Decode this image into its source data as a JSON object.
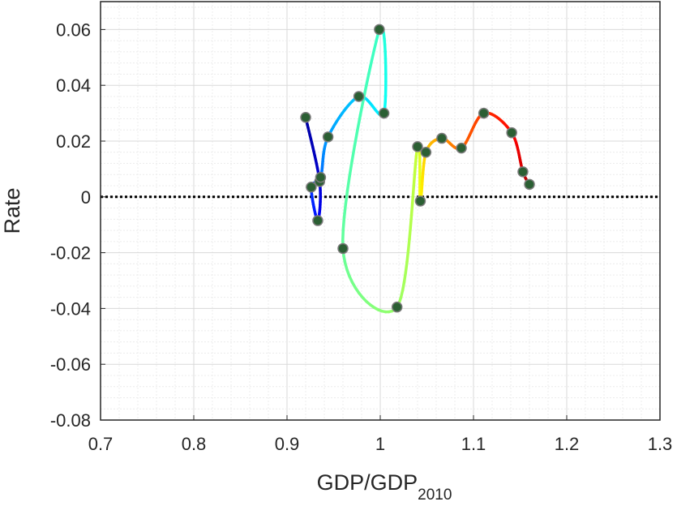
{
  "chart_data": {
    "type": "scatter",
    "title": "",
    "xlabel": "GDP/GDP",
    "xlabel_subscript": "2010",
    "ylabel": "Rate",
    "xlim": [
      0.7,
      1.3
    ],
    "ylim": [
      -0.08,
      0.07
    ],
    "xticks": [
      "0.7",
      "0.8",
      "0.9",
      "1",
      "1.1",
      "1.2",
      "1.3"
    ],
    "yticks": [
      "-0.08",
      "-0.06",
      "-0.04",
      "-0.02",
      "0",
      "0.02",
      "0.04",
      "0.06"
    ],
    "grid": "minor",
    "reference_line": {
      "y": 0,
      "style": "dotted",
      "color": "#000000"
    },
    "series": [
      {
        "points": [
          {
            "x": 0.92,
            "y": 0.0285
          },
          {
            "x": 0.935,
            "y": 0.0055
          },
          {
            "x": 0.933,
            "y": -0.0085
          },
          {
            "x": 0.926,
            "y": 0.0035
          },
          {
            "x": 0.936,
            "y": 0.007
          },
          {
            "x": 0.944,
            "y": 0.0215
          },
          {
            "x": 0.977,
            "y": 0.036
          },
          {
            "x": 1.004,
            "y": 0.03
          },
          {
            "x": 0.999,
            "y": 0.06
          },
          {
            "x": 0.96,
            "y": -0.0185
          },
          {
            "x": 1.018,
            "y": -0.0395
          },
          {
            "x": 1.04,
            "y": 0.018
          },
          {
            "x": 1.043,
            "y": -0.0015
          },
          {
            "x": 1.049,
            "y": 0.016
          },
          {
            "x": 1.066,
            "y": 0.021
          },
          {
            "x": 1.087,
            "y": 0.0175
          },
          {
            "x": 1.111,
            "y": 0.03
          },
          {
            "x": 1.141,
            "y": 0.023
          },
          {
            "x": 1.153,
            "y": 0.009
          },
          {
            "x": 1.16,
            "y": 0.0045
          }
        ]
      }
    ],
    "curve_colormap": "jet",
    "marker_color": "#2b5f33",
    "marker_edge": "#7a7a7a"
  }
}
